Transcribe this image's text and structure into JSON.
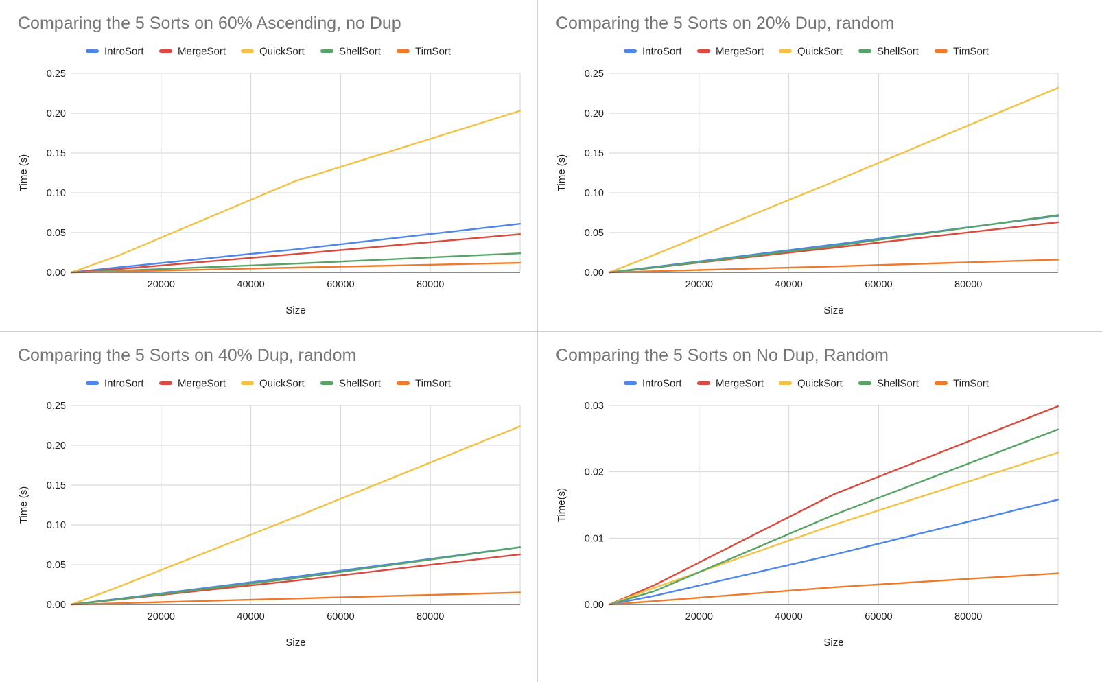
{
  "colors": {
    "IntroSort": "#4e86ec",
    "MergeSort": "#db4a3d",
    "QuickSort": "#f3c143",
    "ShellSort": "#56a566",
    "TimSort": "#ef7a2c",
    "grid": "#d6d6d6",
    "axis": "#444444",
    "title": "#757575"
  },
  "chart_data": [
    {
      "type": "line",
      "title": "Comparing the 5 Sorts on 60% Ascending, no Dup",
      "xlabel": "Size",
      "ylabel": "Time (s)",
      "xlim": [
        0,
        100000
      ],
      "ylim": [
        0,
        0.25
      ],
      "xticks": [
        "20000",
        "40000",
        "60000",
        "80000"
      ],
      "yticks": [
        "0.00",
        "0.05",
        "0.10",
        "0.15",
        "0.20",
        "0.25"
      ],
      "legend_position": "top",
      "x": [
        0,
        10000,
        50000,
        100000
      ],
      "series": [
        {
          "name": "IntroSort",
          "values": [
            0,
            0.006,
            0.029,
            0.061
          ]
        },
        {
          "name": "MergeSort",
          "values": [
            0,
            0.004,
            0.023,
            0.048
          ]
        },
        {
          "name": "QuickSort",
          "values": [
            0,
            0.02,
            0.115,
            0.203
          ]
        },
        {
          "name": "ShellSort",
          "values": [
            0,
            0.002,
            0.011,
            0.024
          ]
        },
        {
          "name": "TimSort",
          "values": [
            0,
            0.001,
            0.006,
            0.012
          ]
        }
      ]
    },
    {
      "type": "line",
      "title": "Comparing the 5 Sorts on 20% Dup, random",
      "xlabel": "Size",
      "ylabel": "Time (s)",
      "xlim": [
        0,
        100000
      ],
      "ylim": [
        0,
        0.25
      ],
      "xticks": [
        "20000",
        "40000",
        "60000",
        "80000"
      ],
      "yticks": [
        "0.00",
        "0.05",
        "0.10",
        "0.15",
        "0.20",
        "0.25"
      ],
      "legend_position": "top",
      "x": [
        0,
        10000,
        50000,
        100000
      ],
      "series": [
        {
          "name": "IntroSort",
          "values": [
            0,
            0.0068,
            0.035,
            0.071
          ]
        },
        {
          "name": "MergeSort",
          "values": [
            0,
            0.006,
            0.031,
            0.063
          ]
        },
        {
          "name": "QuickSort",
          "values": [
            0,
            0.022,
            0.114,
            0.232
          ]
        },
        {
          "name": "ShellSort",
          "values": [
            0,
            0.0062,
            0.033,
            0.072
          ]
        },
        {
          "name": "TimSort",
          "values": [
            0,
            0.0015,
            0.0075,
            0.016
          ]
        }
      ]
    },
    {
      "type": "line",
      "title": "Comparing the 5 Sorts on 40% Dup, random",
      "xlabel": "Size",
      "ylabel": "Time (s)",
      "xlim": [
        0,
        100000
      ],
      "ylim": [
        0,
        0.25
      ],
      "xticks": [
        "20000",
        "40000",
        "60000",
        "80000"
      ],
      "yticks": [
        "0.00",
        "0.05",
        "0.10",
        "0.15",
        "0.20",
        "0.25"
      ],
      "legend_position": "top",
      "x": [
        0,
        10000,
        50000,
        100000
      ],
      "series": [
        {
          "name": "IntroSort",
          "values": [
            0,
            0.0068,
            0.035,
            0.072
          ]
        },
        {
          "name": "MergeSort",
          "values": [
            0,
            0.006,
            0.03,
            0.063
          ]
        },
        {
          "name": "QuickSort",
          "values": [
            0,
            0.021,
            0.11,
            0.224
          ]
        },
        {
          "name": "ShellSort",
          "values": [
            0,
            0.0062,
            0.033,
            0.072
          ]
        },
        {
          "name": "TimSort",
          "values": [
            0,
            0.0015,
            0.0075,
            0.015
          ]
        }
      ]
    },
    {
      "type": "line",
      "title": "Comparing the 5 Sorts on No Dup, Random",
      "xlabel": "Size",
      "ylabel": "Time(s)",
      "xlim": [
        0,
        100000
      ],
      "ylim": [
        0,
        0.03
      ],
      "xticks": [
        "20000",
        "40000",
        "60000",
        "80000"
      ],
      "yticks": [
        "0.00",
        "0.01",
        "0.02",
        "0.03"
      ],
      "legend_position": "top",
      "x": [
        0,
        10000,
        50000,
        100000
      ],
      "series": [
        {
          "name": "IntroSort",
          "values": [
            0,
            0.0013,
            0.0075,
            0.0158
          ]
        },
        {
          "name": "MergeSort",
          "values": [
            0,
            0.0029,
            0.0166,
            0.0299
          ]
        },
        {
          "name": "QuickSort",
          "values": [
            0,
            0.0025,
            0.012,
            0.0229
          ]
        },
        {
          "name": "ShellSort",
          "values": [
            0,
            0.002,
            0.0135,
            0.0264
          ]
        },
        {
          "name": "TimSort",
          "values": [
            0,
            0.0005,
            0.0026,
            0.0047
          ]
        }
      ]
    }
  ]
}
